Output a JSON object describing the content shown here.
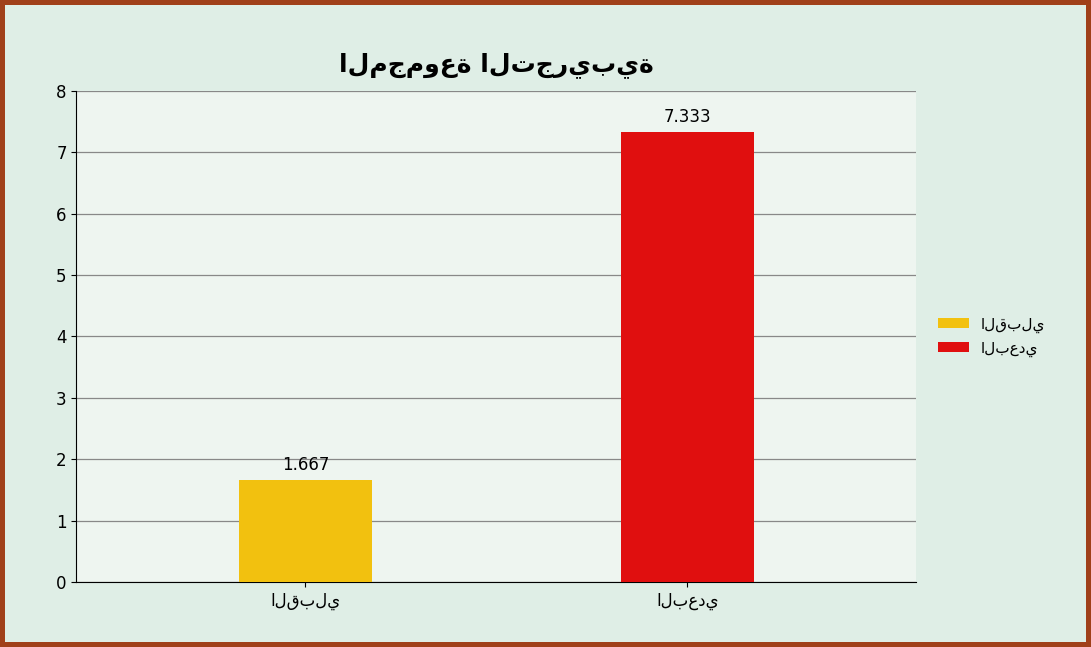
{
  "chart_data": {
    "type": "bar",
    "title": "المجموعة التجريبية",
    "categories": [
      "القبلي",
      "البعدي"
    ],
    "values": [
      1.667,
      7.333
    ],
    "colors": [
      "#f2c10f",
      "#e00f0f"
    ],
    "ylim": [
      0,
      8
    ],
    "yticks": [
      0,
      1,
      2,
      3,
      4,
      5,
      6,
      7,
      8
    ],
    "grid": true,
    "legend": "right",
    "data_labels": true
  }
}
